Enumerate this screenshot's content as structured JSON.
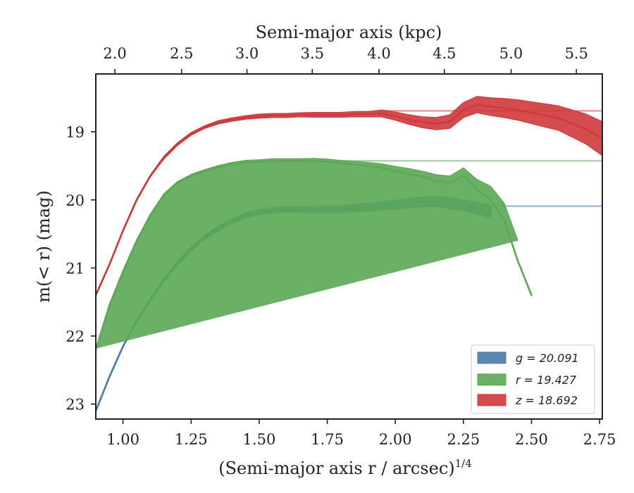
{
  "chart_data": {
    "type": "line",
    "xlabel_bottom": "(Semi-major axis r / arcsec)",
    "xlabel_bottom_exponent": "1/4",
    "xlabel_top": "Semi-major axis (kpc)",
    "ylabel": "m(< r) (mag)",
    "xlim": [
      0.9,
      2.76
    ],
    "ylim": [
      23.22,
      18.15
    ],
    "y_inverted": true,
    "x_ticks": [
      "1.00",
      "1.25",
      "1.50",
      "1.75",
      "2.00",
      "2.25",
      "2.50",
      "2.75"
    ],
    "y_ticks": [
      "19",
      "20",
      "21",
      "22",
      "23"
    ],
    "top_ticks": [
      {
        "label": "2.0",
        "x": 0.97
      },
      {
        "label": "2.5",
        "x": 1.215
      },
      {
        "label": "3.0",
        "x": 1.455
      },
      {
        "label": "3.5",
        "x": 1.695
      },
      {
        "label": "4.0",
        "x": 1.94
      },
      {
        "label": "4.5",
        "x": 2.18
      },
      {
        "label": "5.0",
        "x": 2.425
      },
      {
        "label": "5.5",
        "x": 2.665
      }
    ],
    "legend_position": "lower-right",
    "grid": false,
    "series": [
      {
        "name": "g = 20.091",
        "color": "#4a7aaa",
        "asymptote": 20.091,
        "asymptote_from": 1.95,
        "band_width": [
          0.015,
          0.015,
          0.015,
          0.02,
          0.02,
          0.025,
          0.03,
          0.03,
          0.03,
          0.035,
          0.035,
          0.035,
          0.04,
          0.04,
          0.04,
          0.045,
          0.045,
          0.05,
          0.05,
          0.055,
          0.06,
          0.06,
          0.065,
          0.07,
          0.07,
          0.075,
          0.08,
          0.08,
          0.085,
          0.09
        ],
        "x": [
          0.9,
          0.95,
          1.0,
          1.05,
          1.1,
          1.15,
          1.2,
          1.25,
          1.3,
          1.35,
          1.4,
          1.45,
          1.5,
          1.55,
          1.6,
          1.65,
          1.7,
          1.75,
          1.8,
          1.85,
          1.9,
          1.95,
          2.0,
          2.05,
          2.1,
          2.15,
          2.2,
          2.25,
          2.3,
          2.35
        ],
        "y": [
          23.1,
          22.6,
          22.15,
          21.78,
          21.47,
          21.18,
          20.93,
          20.72,
          20.55,
          20.42,
          20.31,
          20.23,
          20.18,
          20.15,
          20.14,
          20.14,
          20.14,
          20.14,
          20.14,
          20.12,
          20.11,
          20.09,
          20.07,
          20.05,
          20.03,
          20.02,
          20.05,
          20.08,
          20.12,
          20.17
        ]
      },
      {
        "name": "r = 19.427",
        "color": "#5aa855",
        "asymptote": 19.427,
        "asymptote_from": 1.7,
        "band_width": [
          0.015,
          0.015,
          0.015,
          0.015,
          0.02,
          0.02,
          0.02,
          0.025,
          0.025,
          0.025,
          0.03,
          0.03,
          0.03,
          0.035,
          0.035,
          0.035,
          0.04,
          0.04,
          0.04,
          0.045,
          0.05,
          0.06,
          0.07,
          0.08,
          0.08,
          0.09,
          0.1,
          0.12,
          0.15,
          0.2,
          0.25,
          0.3
        ],
        "x": [
          0.9,
          0.95,
          1.0,
          1.05,
          1.1,
          1.15,
          1.2,
          1.25,
          1.3,
          1.35,
          1.4,
          1.45,
          1.5,
          1.55,
          1.6,
          1.65,
          1.7,
          1.75,
          1.8,
          1.85,
          1.9,
          1.95,
          2.0,
          2.05,
          2.1,
          2.15,
          2.2,
          2.25,
          2.3,
          2.35,
          2.4,
          2.45,
          2.5
        ],
        "y": [
          22.2,
          21.55,
          21.05,
          20.6,
          20.23,
          19.93,
          19.75,
          19.65,
          19.58,
          19.52,
          19.48,
          19.45,
          19.44,
          19.43,
          19.43,
          19.43,
          19.43,
          19.44,
          19.46,
          19.48,
          19.5,
          19.53,
          19.58,
          19.62,
          19.66,
          19.72,
          19.75,
          19.65,
          19.85,
          20.0,
          20.3,
          20.9,
          21.4
        ]
      },
      {
        "name": "z = 18.692",
        "color": "#d0393b",
        "asymptote": 18.692,
        "asymptote_from": 1.95,
        "band_width": [
          0.015,
          0.015,
          0.015,
          0.015,
          0.015,
          0.02,
          0.02,
          0.02,
          0.02,
          0.025,
          0.025,
          0.025,
          0.03,
          0.03,
          0.03,
          0.03,
          0.035,
          0.035,
          0.035,
          0.04,
          0.04,
          0.05,
          0.06,
          0.07,
          0.08,
          0.09,
          0.1,
          0.11,
          0.12,
          0.13,
          0.14,
          0.15,
          0.16,
          0.17,
          0.18,
          0.2,
          0.22,
          0.25
        ],
        "x": [
          0.9,
          0.95,
          1.0,
          1.05,
          1.1,
          1.15,
          1.2,
          1.25,
          1.3,
          1.35,
          1.4,
          1.45,
          1.5,
          1.55,
          1.6,
          1.65,
          1.7,
          1.75,
          1.8,
          1.85,
          1.9,
          1.95,
          2.0,
          2.05,
          2.1,
          2.15,
          2.2,
          2.25,
          2.3,
          2.35,
          2.4,
          2.45,
          2.5,
          2.55,
          2.6,
          2.65,
          2.7,
          2.76
        ],
        "y": [
          21.4,
          20.95,
          20.45,
          20.0,
          19.65,
          19.38,
          19.18,
          19.03,
          18.93,
          18.86,
          18.82,
          18.79,
          18.77,
          18.76,
          18.76,
          18.75,
          18.75,
          18.75,
          18.75,
          18.74,
          18.74,
          18.73,
          18.77,
          18.82,
          18.86,
          18.88,
          18.85,
          18.68,
          18.6,
          18.63,
          18.65,
          18.68,
          18.72,
          18.76,
          18.8,
          18.88,
          18.96,
          19.1
        ]
      }
    ]
  }
}
